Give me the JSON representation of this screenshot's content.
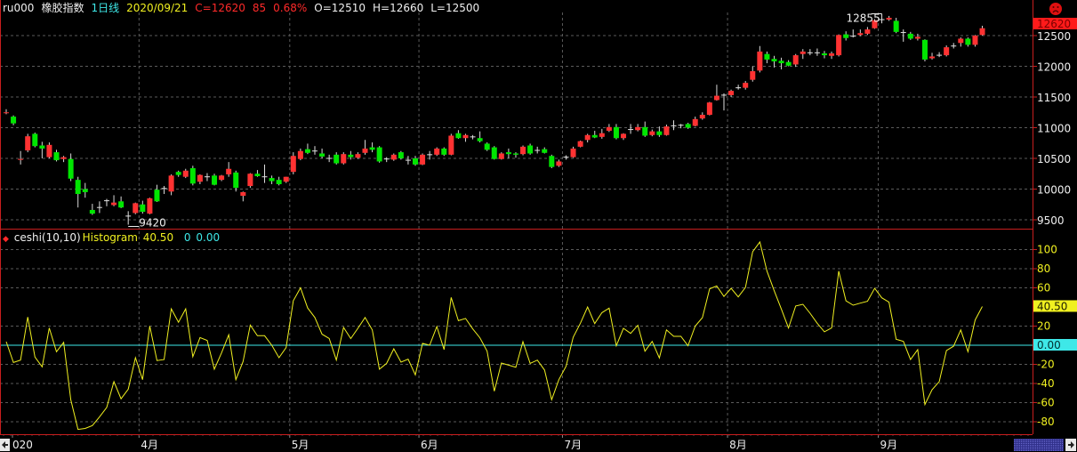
{
  "header": {
    "symbol": "ru000",
    "name": "橡胶指数",
    "period": "1日线",
    "date": "2020/09/21",
    "close": "C=12620",
    "change": "85",
    "change_pct": "0.68%",
    "open": "O=12510",
    "high": "H=12660",
    "low": "L=12500"
  },
  "indicator_header": {
    "name": "ceshi(10,10)",
    "series": "Histogram",
    "value": "40.50",
    "zero_series": "0",
    "zero_value": "0.00"
  },
  "colors": {
    "up": "#ff3232",
    "down": "#00e600",
    "doji": "#e0e0e0",
    "border": "#c81e1e",
    "grid": "#5a5a5a",
    "indicator_line": "#f0f020",
    "zero_line": "#3ee8e8",
    "price_tag": "#ff1a1a"
  },
  "icons": {
    "status": "sad-face-icon",
    "scroll_left": "arrow-left-icon",
    "scroll_right": "arrow-right-icon",
    "indicator_marker": "red-diamond-icon"
  },
  "chart_data": [
    {
      "type": "candlestick",
      "title": "ru000 橡胶指数 1日线",
      "y_ticks": [
        12500,
        12000,
        11500,
        11000,
        10500,
        10000,
        9500
      ],
      "ylim": [
        9420,
        12855
      ],
      "grid": true,
      "last_price_label": "12620",
      "max_label": "12855",
      "min_label": "9420",
      "x_labels": [
        {
          "label": "020",
          "index": 0
        },
        {
          "label": "4月",
          "index": 19
        },
        {
          "label": "5月",
          "index": 40
        },
        {
          "label": "6月",
          "index": 58
        },
        {
          "label": "7月",
          "index": 78
        },
        {
          "label": "8月",
          "index": 101
        },
        {
          "label": "9月",
          "index": 122
        }
      ],
      "ohlc": [
        [
          11240,
          11300,
          11220,
          11250
        ],
        [
          11180,
          11200,
          11040,
          11070
        ],
        [
          10480,
          10620,
          10400,
          10490
        ],
        [
          10630,
          10900,
          10600,
          10860
        ],
        [
          10900,
          10920,
          10680,
          10700
        ],
        [
          10710,
          10770,
          10500,
          10660
        ],
        [
          10520,
          10760,
          10500,
          10720
        ],
        [
          10600,
          10640,
          10450,
          10470
        ],
        [
          10490,
          10540,
          10440,
          10520
        ],
        [
          10490,
          10580,
          10130,
          10170
        ],
        [
          10150,
          10200,
          9700,
          9920
        ],
        [
          10000,
          10100,
          9860,
          9950
        ],
        [
          9660,
          9760,
          9580,
          9600
        ],
        [
          9700,
          9800,
          9610,
          9700
        ],
        [
          9810,
          9840,
          9720,
          9810
        ],
        [
          9740,
          9900,
          9720,
          9780
        ],
        [
          9800,
          9880,
          9690,
          9700
        ],
        [
          9560,
          9640,
          9420,
          9560
        ],
        [
          9610,
          9780,
          9590,
          9770
        ],
        [
          9750,
          9810,
          9600,
          9630
        ],
        [
          9600,
          9860,
          9590,
          9850
        ],
        [
          9990,
          10070,
          9790,
          9800
        ],
        [
          10010,
          10050,
          9920,
          10010
        ],
        [
          9960,
          10240,
          9900,
          10220
        ],
        [
          10280,
          10300,
          10200,
          10230
        ],
        [
          10200,
          10330,
          10180,
          10300
        ],
        [
          10340,
          10380,
          10060,
          10090
        ],
        [
          10120,
          10240,
          10080,
          10230
        ],
        [
          10200,
          10260,
          10130,
          10200
        ],
        [
          10220,
          10250,
          10060,
          10070
        ],
        [
          10150,
          10230,
          10130,
          10220
        ],
        [
          10240,
          10440,
          10200,
          10330
        ],
        [
          10270,
          10300,
          9960,
          10020
        ],
        [
          9890,
          9960,
          9800,
          9950
        ],
        [
          10050,
          10260,
          10020,
          10250
        ],
        [
          10250,
          10310,
          10200,
          10210
        ],
        [
          10200,
          10400,
          10100,
          10200
        ],
        [
          10180,
          10220,
          10080,
          10130
        ],
        [
          10150,
          10200,
          10060,
          10080
        ],
        [
          10120,
          10200,
          10100,
          10200
        ],
        [
          10280,
          10600,
          10240,
          10540
        ],
        [
          10490,
          10660,
          10470,
          10620
        ],
        [
          10650,
          10740,
          10570,
          10590
        ],
        [
          10620,
          10700,
          10560,
          10620
        ],
        [
          10580,
          10660,
          10500,
          10530
        ],
        [
          10500,
          10560,
          10440,
          10500
        ],
        [
          10560,
          10600,
          10400,
          10420
        ],
        [
          10420,
          10600,
          10400,
          10570
        ],
        [
          10560,
          10620,
          10480,
          10520
        ],
        [
          10510,
          10600,
          10490,
          10570
        ],
        [
          10590,
          10800,
          10560,
          10660
        ],
        [
          10680,
          10760,
          10600,
          10640
        ],
        [
          10680,
          10700,
          10430,
          10450
        ],
        [
          10490,
          10520,
          10440,
          10490
        ],
        [
          10480,
          10580,
          10460,
          10560
        ],
        [
          10600,
          10620,
          10480,
          10500
        ],
        [
          10470,
          10540,
          10400,
          10470
        ],
        [
          10500,
          10540,
          10380,
          10400
        ],
        [
          10400,
          10580,
          10390,
          10560
        ],
        [
          10560,
          10620,
          10480,
          10560
        ],
        [
          10560,
          10680,
          10540,
          10660
        ],
        [
          10660,
          10680,
          10540,
          10560
        ],
        [
          10560,
          10900,
          10550,
          10870
        ],
        [
          10910,
          10960,
          10820,
          10830
        ],
        [
          10830,
          10900,
          10770,
          10880
        ],
        [
          10850,
          10880,
          10810,
          10850
        ],
        [
          10830,
          10940,
          10760,
          10780
        ],
        [
          10740,
          10760,
          10620,
          10640
        ],
        [
          10680,
          10700,
          10480,
          10490
        ],
        [
          10490,
          10600,
          10480,
          10580
        ],
        [
          10600,
          10660,
          10500,
          10570
        ],
        [
          10580,
          10600,
          10510,
          10560
        ],
        [
          10570,
          10710,
          10550,
          10690
        ],
        [
          10710,
          10740,
          10560,
          10580
        ],
        [
          10630,
          10690,
          10580,
          10630
        ],
        [
          10650,
          10680,
          10580,
          10590
        ],
        [
          10540,
          10560,
          10340,
          10360
        ],
        [
          10380,
          10480,
          10360,
          10450
        ],
        [
          10520,
          10550,
          10480,
          10520
        ],
        [
          10520,
          10690,
          10510,
          10660
        ],
        [
          10690,
          10790,
          10680,
          10780
        ],
        [
          10800,
          10900,
          10760,
          10880
        ],
        [
          10880,
          10950,
          10830,
          10840
        ],
        [
          10850,
          10980,
          10820,
          10910
        ],
        [
          10950,
          11060,
          10930,
          11010
        ],
        [
          11010,
          11060,
          10810,
          10830
        ],
        [
          10830,
          10910,
          10800,
          10900
        ],
        [
          10970,
          11060,
          10900,
          10970
        ],
        [
          10960,
          11060,
          10940,
          11010
        ],
        [
          11010,
          11100,
          10850,
          10870
        ],
        [
          10880,
          10970,
          10860,
          10940
        ],
        [
          10940,
          11020,
          10850,
          10880
        ],
        [
          10880,
          11050,
          10870,
          11020
        ],
        [
          11030,
          11120,
          10960,
          11030
        ],
        [
          11040,
          11060,
          10990,
          11040
        ],
        [
          11060,
          11080,
          10980,
          11000
        ],
        [
          11030,
          11180,
          11020,
          11140
        ],
        [
          11150,
          11250,
          11130,
          11210
        ],
        [
          11210,
          11420,
          11200,
          11410
        ],
        [
          11450,
          11700,
          11440,
          11520
        ],
        [
          11530,
          11560,
          11280,
          11530
        ],
        [
          11530,
          11620,
          11500,
          11600
        ],
        [
          11650,
          11700,
          11620,
          11650
        ],
        [
          11650,
          11760,
          11620,
          11730
        ],
        [
          11780,
          12000,
          11750,
          11920
        ],
        [
          11930,
          12330,
          11900,
          12240
        ],
        [
          12200,
          12240,
          12050,
          12110
        ],
        [
          12120,
          12170,
          11980,
          12080
        ],
        [
          12090,
          12140,
          11950,
          12050
        ],
        [
          12070,
          12100,
          12000,
          12010
        ],
        [
          12030,
          12200,
          11990,
          12180
        ],
        [
          12200,
          12280,
          12120,
          12240
        ],
        [
          12220,
          12280,
          12180,
          12220
        ],
        [
          12220,
          12290,
          12170,
          12220
        ],
        [
          12210,
          12250,
          12130,
          12180
        ],
        [
          12170,
          12240,
          12120,
          12210
        ],
        [
          12180,
          12520,
          12160,
          12510
        ],
        [
          12520,
          12570,
          12420,
          12460
        ],
        [
          12490,
          12600,
          12470,
          12490
        ],
        [
          12510,
          12600,
          12490,
          12540
        ],
        [
          12530,
          12640,
          12510,
          12600
        ],
        [
          12620,
          12770,
          12610,
          12750
        ],
        [
          12760,
          12855,
          12700,
          12760
        ],
        [
          12760,
          12820,
          12740,
          12790
        ],
        [
          12740,
          12790,
          12540,
          12560
        ],
        [
          12550,
          12600,
          12400,
          12550
        ],
        [
          12530,
          12560,
          12430,
          12450
        ],
        [
          12450,
          12530,
          12420,
          12480
        ],
        [
          12430,
          12440,
          12080,
          12110
        ],
        [
          12130,
          12220,
          12110,
          12160
        ],
        [
          12180,
          12230,
          12150,
          12180
        ],
        [
          12180,
          12340,
          12160,
          12310
        ],
        [
          12330,
          12380,
          12290,
          12330
        ],
        [
          12380,
          12470,
          12320,
          12450
        ],
        [
          12450,
          12470,
          12320,
          12350
        ],
        [
          12350,
          12510,
          12320,
          12500
        ],
        [
          12510,
          12660,
          12500,
          12620
        ]
      ]
    },
    {
      "type": "line",
      "title": "ceshi(10,10)",
      "y_ticks": [
        100,
        80,
        60,
        20,
        -20,
        -40,
        -60,
        -80
      ],
      "ylim": [
        -90,
        110
      ],
      "grid": true,
      "series": [
        {
          "name": "Histogram",
          "last_label": "40.50",
          "values": [
            3.7,
            -18,
            -15.5,
            29.5,
            -12.4,
            -22.6,
            18,
            -6.8,
            3,
            -57,
            -88,
            -87,
            -84,
            -75,
            -65,
            -38,
            -56,
            -46,
            -13,
            -36,
            20,
            -16,
            -15,
            38,
            24,
            38,
            -12,
            8,
            5,
            -25,
            -8,
            11,
            -36,
            -17,
            21,
            10,
            10,
            0,
            -13,
            -2.5,
            46.5,
            60,
            39,
            29,
            11.5,
            7,
            -15.5,
            18.6,
            7,
            17.7,
            29,
            16,
            -25,
            -19,
            -3.7,
            -17.7,
            -14.6,
            -31,
            2,
            0,
            19.5,
            -4.6,
            50,
            25.7,
            28,
            17,
            7.8,
            -6.2,
            -48,
            -18.6,
            -20.8,
            -23,
            3.7,
            -19,
            -15.5,
            -26,
            -57,
            -36,
            -22,
            8.4,
            23,
            40,
            22.6,
            34,
            38.8,
            -0.6,
            17.7,
            12.4,
            20.8,
            -6.2,
            4,
            -13.3,
            16,
            9.3,
            9.3,
            -0.6,
            20,
            28.8,
            59,
            62,
            51,
            59.5,
            50.5,
            60.5,
            97.7,
            108,
            77.5,
            57,
            37.8,
            18,
            41,
            42.8,
            33.5,
            23,
            14,
            18,
            77.5,
            46.5,
            41.9,
            44,
            46,
            59.5,
            49.6,
            45,
            6.2,
            4,
            -15,
            -4.6,
            -62,
            -46.5,
            -38,
            -5.6,
            -1,
            16,
            -6.8,
            26.4,
            40.5
          ]
        },
        {
          "name": "0",
          "last_label": "0.00",
          "values": [
            0
          ]
        }
      ]
    }
  ]
}
